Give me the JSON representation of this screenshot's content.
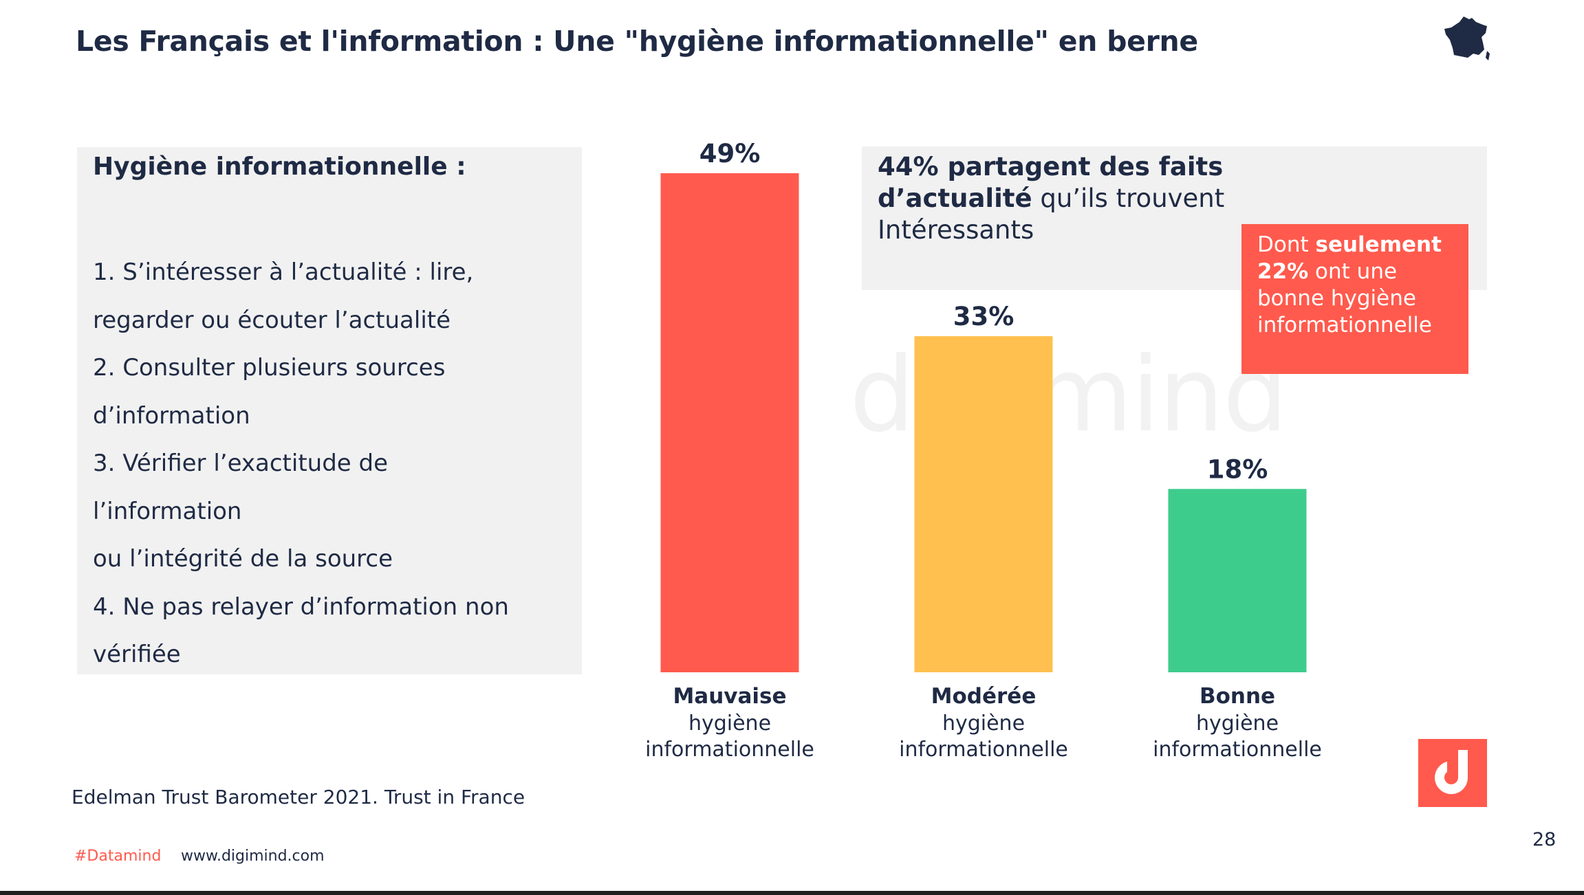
{
  "slide": {
    "title": "Les Français et l'information :  Une \"hygiène informationnelle\" en berne",
    "page_number": "28",
    "source": "Edelman Trust Barometer 2021. Trust in France",
    "footer_hashtag": "#Datamind",
    "footer_website": "www.digimind.com",
    "watermark": "digimind"
  },
  "definition": {
    "heading": "Hygiène informationnelle :",
    "lines": [
      "1. S’intéresser à l’actualité : lire,",
      "regarder ou écouter l’actualité",
      "2. Consulter plusieurs sources",
      "d’information",
      "3. Vérifier l’exactitude de",
      "l’information",
      "ou l’intégrité de la source",
      "4. Ne pas relayer d’information non",
      "vérifiée"
    ]
  },
  "share_box": {
    "bold_part": "44% partagent des faits d’actualité",
    "rest": " qu’ils trouvent Intéressants"
  },
  "callout": {
    "prefix": "Dont ",
    "bold_part": "seulement 22%",
    "rest": " ont une bonne hygiène informationnelle"
  },
  "colors": {
    "bad": "#ff5a4d",
    "moderate": "#ffc04f",
    "good": "#3ecc8c",
    "text": "#1f2a44",
    "box": "#f1f1f1"
  },
  "chart_data": {
    "type": "bar",
    "categories": [
      "Mauvaise",
      "Modérée",
      "Bonne"
    ],
    "category_sublabels": [
      "hygiène\ninformationnelle",
      "hygiène\ninformationnelle",
      "hygiène\ninformationnelle"
    ],
    "values": [
      49,
      33,
      18
    ],
    "value_labels": [
      "49%",
      "33%",
      "18%"
    ],
    "colors": [
      "#ff5a4d",
      "#ffc04f",
      "#3ecc8c"
    ],
    "title": "",
    "xlabel": "",
    "ylabel": "",
    "ylim": [
      0,
      49
    ],
    "grid": false,
    "legend": "none"
  }
}
